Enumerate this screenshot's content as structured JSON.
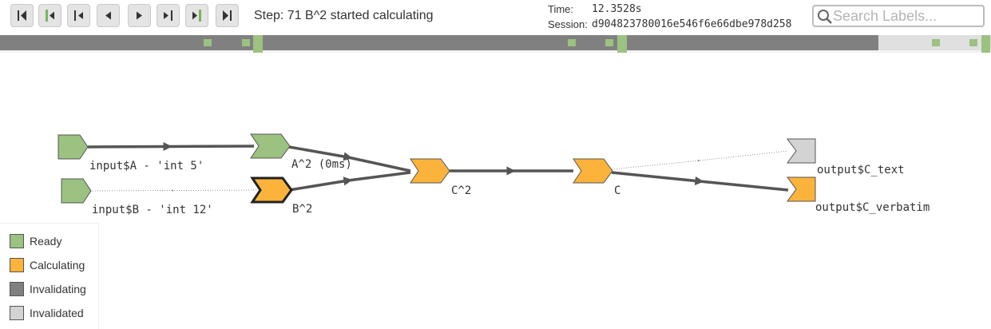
{
  "toolbar": {
    "buttons": [
      {
        "name": "first-step-button",
        "icon": "skip-to-start-icon"
      },
      {
        "name": "prev-idle-button",
        "icon": "prev-idle-icon"
      },
      {
        "name": "prev-output-button",
        "icon": "prev-output-icon"
      },
      {
        "name": "prev-step-button",
        "icon": "step-back-icon"
      },
      {
        "name": "next-step-button",
        "icon": "step-forward-icon"
      },
      {
        "name": "next-output-button",
        "icon": "next-output-icon"
      },
      {
        "name": "next-idle-button",
        "icon": "next-idle-icon"
      },
      {
        "name": "last-step-button",
        "icon": "skip-to-end-icon"
      }
    ],
    "step_text": "Step: 71 B^2 started calculating",
    "time_label": "Time:",
    "time_value": "12.3528s",
    "session_label": "Session:",
    "session_value": "d904823780016e546f6e66dbe978d258"
  },
  "search": {
    "placeholder": "Search Labels...",
    "value": ""
  },
  "timeline": {
    "progress_fraction": 0.886,
    "colors": {
      "filled": "#808080",
      "remaining": "#e0e0e0",
      "marker": "#9bc281"
    }
  },
  "graph": {
    "nodes": [
      {
        "id": "inputA",
        "label": "input$A - 'int 5'",
        "state": "ready",
        "shape": "input"
      },
      {
        "id": "inputB",
        "label": "input$B - 'int 12'",
        "state": "ready",
        "shape": "input"
      },
      {
        "id": "A2",
        "label": "A^2 (0ms)",
        "state": "ready",
        "shape": "chevron"
      },
      {
        "id": "B2",
        "label": "B^2",
        "state": "calculating",
        "shape": "chevron",
        "highlighted": true
      },
      {
        "id": "C2",
        "label": "C^2",
        "state": "calculating",
        "shape": "chevron"
      },
      {
        "id": "C",
        "label": "C",
        "state": "calculating",
        "shape": "chevron"
      },
      {
        "id": "outText",
        "label": "output$C_text",
        "state": "invalidated",
        "shape": "output"
      },
      {
        "id": "outVerb",
        "label": "output$C_verbatim",
        "state": "calculating",
        "shape": "output"
      }
    ],
    "edges": [
      {
        "from": "inputA",
        "to": "A2",
        "style": "solid"
      },
      {
        "from": "inputB",
        "to": "B2",
        "style": "dotted"
      },
      {
        "from": "A2",
        "to": "C2",
        "style": "solid"
      },
      {
        "from": "B2",
        "to": "C2",
        "style": "solid"
      },
      {
        "from": "C2",
        "to": "C",
        "style": "solid"
      },
      {
        "from": "C",
        "to": "outText",
        "style": "dotted"
      },
      {
        "from": "C",
        "to": "outVerb",
        "style": "solid"
      }
    ]
  },
  "legend": {
    "items": [
      {
        "label": "Ready",
        "color": "#9bc281"
      },
      {
        "label": "Calculating",
        "color": "#fbb33b"
      },
      {
        "label": "Invalidating",
        "color": "#808080"
      },
      {
        "label": "Invalidated",
        "color": "#d3d3d3"
      }
    ]
  },
  "state_colors": {
    "ready": "#9bc281",
    "calculating": "#fbb33b",
    "invalidating": "#808080",
    "invalidated": "#d3d3d3"
  }
}
